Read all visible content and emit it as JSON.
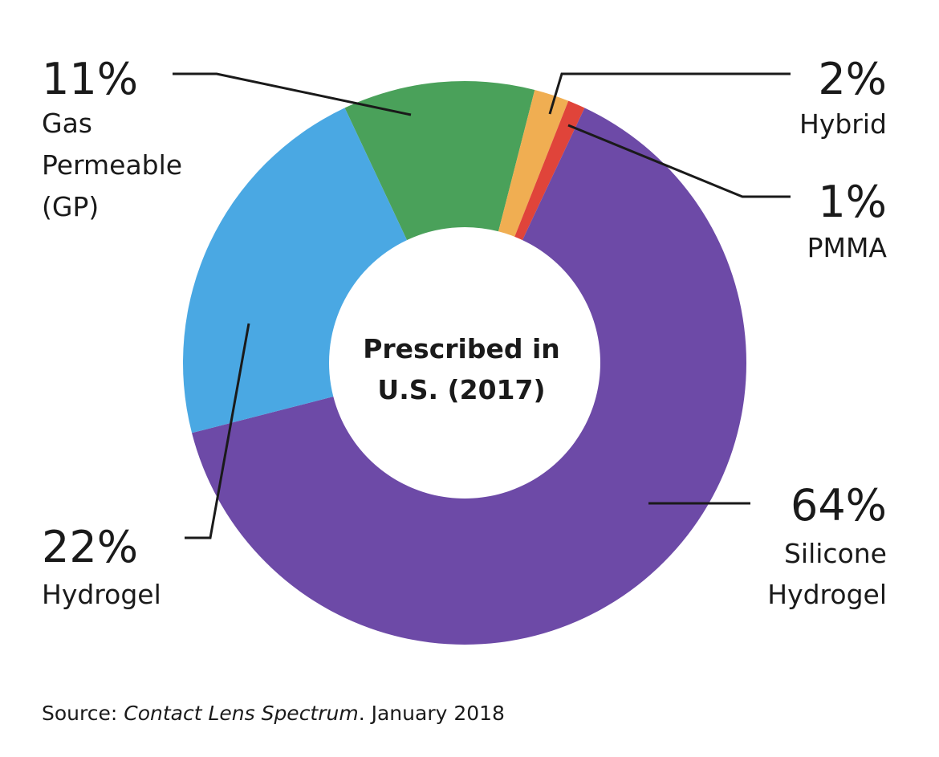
{
  "chart_data": {
    "type": "pie",
    "donut": true,
    "center_text": [
      "Prescribed in",
      "U.S. (2017)"
    ],
    "slices": [
      {
        "label": "Gas Permeable (GP)",
        "label_lines": [
          "Gas",
          "Permeable",
          "(GP)"
        ],
        "value": 11,
        "value_label": "11%",
        "color": "#4aa15a"
      },
      {
        "label": "Hybrid",
        "label_lines": [
          "Hybrid"
        ],
        "value": 2,
        "value_label": "2%",
        "color": "#f0ae52"
      },
      {
        "label": "PMMA",
        "label_lines": [
          "PMMA"
        ],
        "value": 1,
        "value_label": "1%",
        "color": "#e0443a"
      },
      {
        "label": "Silicone Hydrogel",
        "label_lines": [
          "Silicone",
          "Hydrogel"
        ],
        "value": 64,
        "value_label": "64%",
        "color": "#6d4aa7"
      },
      {
        "label": "Hydrogel",
        "label_lines": [
          "Hydrogel"
        ],
        "value": 22,
        "value_label": "22%",
        "color": "#4aa8e3"
      }
    ],
    "source": {
      "prefix": "Source: ",
      "publication": "Contact Lens Spectrum",
      "suffix": ". January 2018"
    }
  }
}
